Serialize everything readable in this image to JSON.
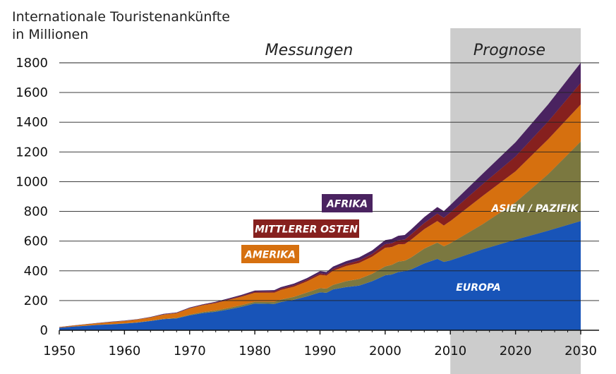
{
  "chart_data": {
    "type": "area",
    "stacked": true,
    "title": "Internationale Touristenankünfte in Millionen",
    "title_lines": [
      "Internationale Touristenankünfte",
      "in Millionen"
    ],
    "xlim": [
      1950,
      2030
    ],
    "ylim": [
      0,
      1800
    ],
    "x_ticks": [
      1950,
      1960,
      1970,
      1980,
      1990,
      2000,
      2010,
      2020,
      2030
    ],
    "y_ticks": [
      0,
      200,
      400,
      600,
      800,
      1000,
      1200,
      1400,
      1600,
      1800
    ],
    "grid": true,
    "regions": [
      {
        "label": "Messungen",
        "from": 1950,
        "to": 2010
      },
      {
        "label": "Prognose",
        "from": 2010,
        "to": 2030,
        "shaded": true,
        "color": "#cccccc"
      }
    ],
    "x": [
      1950,
      1952,
      1954,
      1956,
      1958,
      1960,
      1962,
      1964,
      1966,
      1968,
      1970,
      1972,
      1974,
      1976,
      1978,
      1980,
      1982,
      1983,
      1984,
      1986,
      1988,
      1990,
      1991,
      1992,
      1994,
      1996,
      1998,
      2000,
      2001,
      2002,
      2003,
      2004,
      2006,
      2008,
      2009,
      2010,
      2015,
      2020,
      2025,
      2030
    ],
    "series": [
      {
        "name": "EUROPA",
        "color": "#1854b8",
        "values": [
          17,
          24,
          30,
          36,
          40,
          45,
          52,
          62,
          75,
          80,
          100,
          115,
          125,
          140,
          158,
          180,
          178,
          177,
          190,
          205,
          228,
          255,
          252,
          275,
          290,
          300,
          330,
          370,
          375,
          392,
          398,
          410,
          450,
          480,
          460,
          470,
          545,
          610,
          670,
          735
        ]
      },
      {
        "name": "ASIEN / PAZIFIK",
        "color": "#7b7840",
        "values": [
          0,
          0,
          1,
          1,
          1,
          1,
          1,
          2,
          2,
          3,
          5,
          7,
          8,
          10,
          11,
          12,
          14,
          14,
          16,
          20,
          26,
          28,
          28,
          30,
          40,
          45,
          50,
          60,
          65,
          70,
          70,
          80,
          100,
          110,
          105,
          115,
          170,
          250,
          380,
          535
        ]
      },
      {
        "name": "AMERIKA",
        "color": "#d6700f",
        "values": [
          4,
          7,
          9,
          11,
          14,
          16,
          19,
          22,
          28,
          32,
          42,
          46,
          50,
          54,
          57,
          60,
          60,
          62,
          65,
          68,
          75,
          90,
          88,
          95,
          102,
          108,
          115,
          125,
          120,
          116,
          112,
          120,
          130,
          145,
          140,
          150,
          190,
          210,
          235,
          250
        ]
      },
      {
        "name": "MITTLERER OSTEN",
        "color": "#86201e",
        "values": [
          0,
          0,
          0,
          0,
          1,
          1,
          1,
          1,
          2,
          2,
          2,
          3,
          4,
          5,
          6,
          7,
          8,
          8,
          9,
          10,
          10,
          10,
          9,
          12,
          14,
          16,
          18,
          24,
          25,
          28,
          30,
          36,
          42,
          50,
          52,
          58,
          80,
          100,
          120,
          145
        ]
      },
      {
        "name": "AFRIKA",
        "color": "#4a2360",
        "values": [
          1,
          1,
          1,
          2,
          2,
          2,
          2,
          3,
          3,
          3,
          4,
          4,
          5,
          6,
          7,
          8,
          9,
          9,
          10,
          11,
          12,
          15,
          15,
          17,
          19,
          21,
          24,
          28,
          29,
          30,
          31,
          33,
          40,
          44,
          45,
          50,
          70,
          95,
          115,
          135
        ]
      }
    ],
    "labels": [
      "AFRIKA",
      "MITTLERER OSTEN",
      "AMERIKA",
      "ASIEN / PAZIFIK",
      "EUROPA"
    ]
  }
}
